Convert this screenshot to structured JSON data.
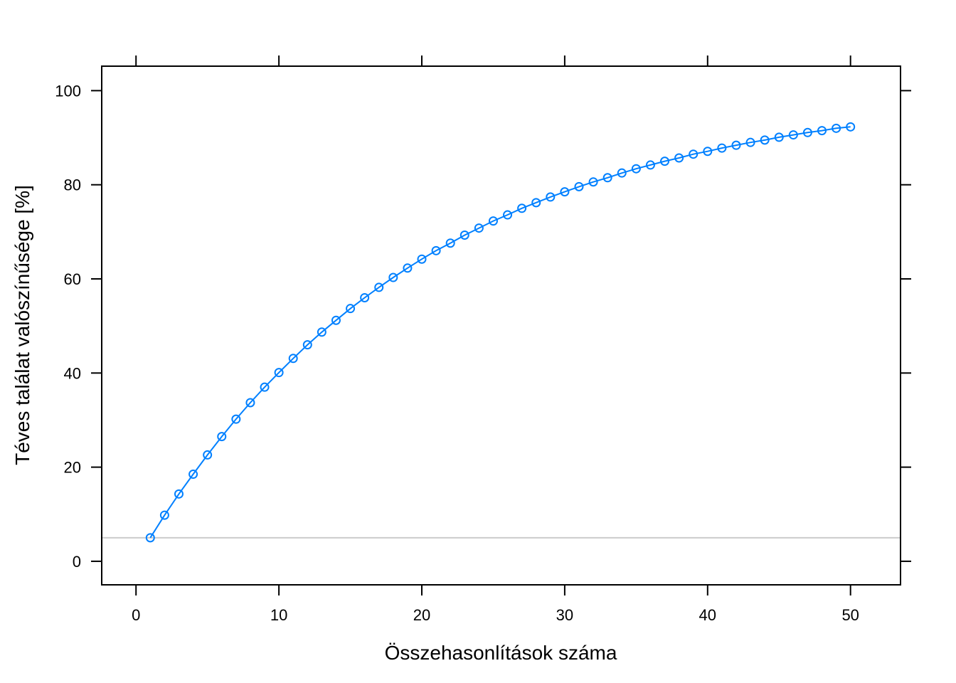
{
  "chart_data": {
    "type": "line",
    "xlabel": "Összehasonlítások száma",
    "ylabel": "Téves találat valószínűsége [%]",
    "xlim": [
      -2.4,
      53.5
    ],
    "ylim": [
      -5,
      105.2
    ],
    "x_ticks": [
      0,
      10,
      20,
      30,
      40,
      50
    ],
    "y_ticks": [
      0,
      20,
      40,
      60,
      80,
      100
    ],
    "reference_line": {
      "y": 5,
      "color": "#cccccc"
    },
    "grid": false,
    "colors": {
      "series": "#0080ff",
      "axis": "#000000"
    },
    "series": [
      {
        "marker": "open-circle",
        "x": [
          1,
          2,
          3,
          4,
          5,
          6,
          7,
          8,
          9,
          10,
          11,
          12,
          13,
          14,
          15,
          16,
          17,
          18,
          19,
          20,
          21,
          22,
          23,
          24,
          25,
          26,
          27,
          28,
          29,
          30,
          31,
          32,
          33,
          34,
          35,
          36,
          37,
          38,
          39,
          40,
          41,
          42,
          43,
          44,
          45,
          46,
          47,
          48,
          49,
          50
        ],
        "values": [
          5.0,
          9.8,
          14.3,
          18.5,
          22.6,
          26.5,
          30.2,
          33.7,
          37.0,
          40.1,
          43.1,
          46.0,
          48.7,
          51.2,
          53.7,
          56.0,
          58.2,
          60.3,
          62.3,
          64.2,
          66.0,
          67.6,
          69.3,
          70.8,
          72.3,
          73.6,
          75.0,
          76.2,
          77.4,
          78.5,
          79.6,
          80.6,
          81.5,
          82.5,
          83.4,
          84.2,
          85.0,
          85.7,
          86.5,
          87.1,
          87.8,
          88.4,
          89.0,
          89.5,
          90.1,
          90.6,
          91.1,
          91.5,
          92.0,
          92.3
        ]
      }
    ]
  }
}
